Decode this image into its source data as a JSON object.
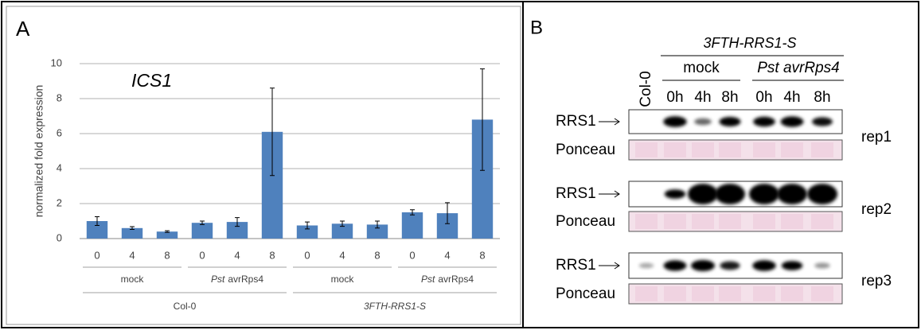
{
  "chart_data": {
    "type": "bar",
    "panel_label": "A",
    "title": "ICS1",
    "y_label": "normalized fold expression",
    "categories": [
      "0",
      "4",
      "8",
      "0",
      "4",
      "8",
      "0",
      "4",
      "8",
      "0",
      "4",
      "8"
    ],
    "groups": [
      {
        "text": "mock"
      },
      {
        "italic": "Pst",
        "text": "avrRps4"
      },
      {
        "text": "mock"
      },
      {
        "italic": "Pst",
        "text": "avrRps4"
      }
    ],
    "super_groups": [
      {
        "text": "Col-0"
      },
      {
        "italic": "3FTH-RRS1-S"
      }
    ],
    "series": [
      {
        "color": "#4f81bd",
        "values": [
          1.0,
          0.6,
          0.4,
          0.9,
          0.95,
          6.1,
          0.75,
          0.85,
          0.8,
          1.5,
          1.45,
          6.8
        ],
        "errors": [
          0.25,
          0.08,
          0.05,
          0.1,
          0.25,
          2.5,
          0.2,
          0.15,
          0.2,
          0.15,
          0.6,
          2.9
        ]
      }
    ],
    "ylim": [
      0,
      10
    ],
    "yticks": [
      0,
      2,
      4,
      6,
      8,
      10
    ],
    "grid": true
  },
  "panel_b": {
    "panel_label": "B",
    "title": "3FTH-RRS1-S",
    "control": "Col-0",
    "conditions": [
      {
        "text": "mock"
      },
      {
        "italic": "Pst avrRps4"
      }
    ],
    "lanes": [
      "0h",
      "4h",
      "8h",
      "0h",
      "4h",
      "8h"
    ],
    "row_labels": [
      "RRS1",
      "Ponceau"
    ],
    "reps": [
      "rep1",
      "rep2",
      "rep3"
    ]
  }
}
